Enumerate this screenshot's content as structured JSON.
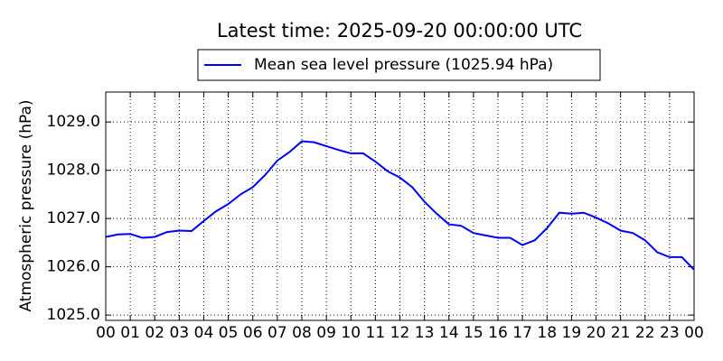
{
  "chart_data": {
    "type": "line",
    "title": "Latest time: 2025-09-20 00:00:00 UTC",
    "y_label": "Atmospheric pressure (hPa)",
    "x": [
      0,
      0.5,
      1,
      1.5,
      2,
      2.5,
      3,
      3.5,
      4,
      4.5,
      5,
      5.5,
      6,
      6.5,
      7,
      7.5,
      8,
      8.5,
      9,
      9.5,
      10,
      10.5,
      11,
      11.5,
      12,
      12.5,
      13,
      13.5,
      14,
      14.5,
      15,
      15.5,
      16,
      16.5,
      17,
      17.5,
      18,
      18.5,
      19,
      19.5,
      20,
      20.5,
      21,
      21.5,
      22,
      22.5,
      23,
      23.5,
      24
    ],
    "series": [
      {
        "name": "Mean sea level pressure (1025.94 hPa)",
        "color": "#0000ff",
        "values": [
          1026.62,
          1026.67,
          1026.68,
          1026.6,
          1026.62,
          1026.72,
          1026.75,
          1026.74,
          1026.95,
          1027.15,
          1027.3,
          1027.5,
          1027.65,
          1027.9,
          1028.2,
          1028.38,
          1028.6,
          1028.58,
          1028.5,
          1028.42,
          1028.35,
          1028.35,
          1028.18,
          1027.98,
          1027.85,
          1027.65,
          1027.35,
          1027.1,
          1026.88,
          1026.85,
          1026.7,
          1026.65,
          1026.6,
          1026.6,
          1026.45,
          1026.55,
          1026.8,
          1027.12,
          1027.1,
          1027.12,
          1027.02,
          1026.9,
          1026.75,
          1026.7,
          1026.55,
          1026.3,
          1026.2,
          1026.2,
          1025.94
        ]
      }
    ],
    "xlim": [
      0,
      24
    ],
    "xticks": [
      {
        "value": 0,
        "label": "00"
      },
      {
        "value": 1,
        "label": "01"
      },
      {
        "value": 2,
        "label": "02"
      },
      {
        "value": 3,
        "label": "03"
      },
      {
        "value": 4,
        "label": "04"
      },
      {
        "value": 5,
        "label": "05"
      },
      {
        "value": 6,
        "label": "06"
      },
      {
        "value": 7,
        "label": "07"
      },
      {
        "value": 8,
        "label": "08"
      },
      {
        "value": 9,
        "label": "09"
      },
      {
        "value": 10,
        "label": "10"
      },
      {
        "value": 11,
        "label": "11"
      },
      {
        "value": 12,
        "label": "12"
      },
      {
        "value": 13,
        "label": "13"
      },
      {
        "value": 14,
        "label": "14"
      },
      {
        "value": 15,
        "label": "15"
      },
      {
        "value": 16,
        "label": "16"
      },
      {
        "value": 17,
        "label": "17"
      },
      {
        "value": 18,
        "label": "18"
      },
      {
        "value": 19,
        "label": "19"
      },
      {
        "value": 20,
        "label": "20"
      },
      {
        "value": 21,
        "label": "21"
      },
      {
        "value": 22,
        "label": "22"
      },
      {
        "value": 23,
        "label": "23"
      },
      {
        "value": 24,
        "label": "00"
      }
    ],
    "ylim": [
      1024.89,
      1029.62
    ],
    "yticks": [
      {
        "value": 1025,
        "label": "1025.0"
      },
      {
        "value": 1026,
        "label": "1026.0"
      },
      {
        "value": 1027,
        "label": "1027.0"
      },
      {
        "value": 1028,
        "label": "1028.0"
      },
      {
        "value": 1029,
        "label": "1029.0"
      }
    ],
    "grid": true,
    "legend": "top"
  }
}
